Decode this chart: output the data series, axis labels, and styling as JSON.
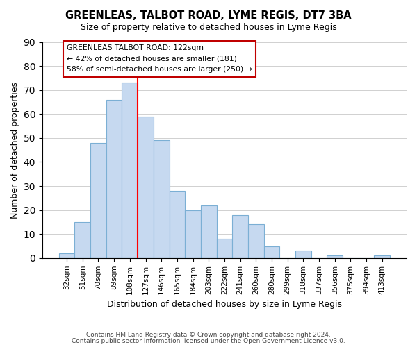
{
  "title": "GREENLEAS, TALBOT ROAD, LYME REGIS, DT7 3BA",
  "subtitle": "Size of property relative to detached houses in Lyme Regis",
  "xlabel": "Distribution of detached houses by size in Lyme Regis",
  "ylabel": "Number of detached properties",
  "footer_line1": "Contains HM Land Registry data © Crown copyright and database right 2024.",
  "footer_line2": "Contains public sector information licensed under the Open Government Licence v3.0.",
  "bar_labels": [
    "32sqm",
    "51sqm",
    "70sqm",
    "89sqm",
    "108sqm",
    "127sqm",
    "146sqm",
    "165sqm",
    "184sqm",
    "203sqm",
    "222sqm",
    "241sqm",
    "260sqm",
    "280sqm",
    "299sqm",
    "318sqm",
    "337sqm",
    "356sqm",
    "375sqm",
    "394sqm",
    "413sqm"
  ],
  "bar_values": [
    2,
    15,
    48,
    66,
    73,
    59,
    49,
    28,
    20,
    22,
    8,
    18,
    14,
    5,
    0,
    3,
    0,
    1,
    0,
    0,
    1
  ],
  "bar_color": "#c6d9f0",
  "bar_edge_color": "#7bafd4",
  "vline_x": 4.5,
  "vline_color": "red",
  "ylim": [
    0,
    90
  ],
  "yticks": [
    0,
    10,
    20,
    30,
    40,
    50,
    60,
    70,
    80,
    90
  ],
  "annotation_title": "GREENLEAS TALBOT ROAD: 122sqm",
  "annotation_line1": "← 42% of detached houses are smaller (181)",
  "annotation_line2": "58% of semi-detached houses are larger (250) →",
  "annotation_box_color": "#ffffff",
  "annotation_box_edge": "#c00000",
  "grid_color": "#d0d0d0"
}
